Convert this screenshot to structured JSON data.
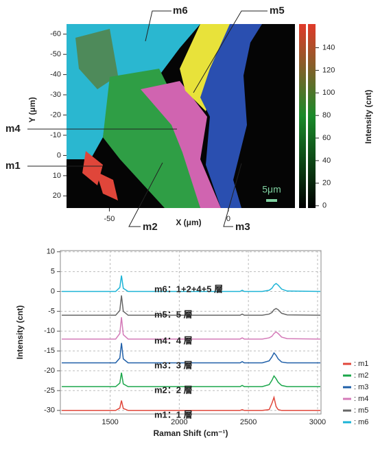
{
  "chart_data": [
    {
      "type": "image",
      "xlabel": "X (μm)",
      "ylabel": "Y (μm)",
      "xlim": [
        -68,
        28
      ],
      "ylim": [
        -65,
        26
      ],
      "xticks": [
        -50,
        0
      ],
      "yticks": [
        -60,
        -50,
        -40,
        -30,
        -20,
        -10,
        0,
        10,
        20
      ],
      "colorbar": {
        "label": "Intensity (cnt)",
        "lim": [
          -2,
          161
        ],
        "ticks": [
          0,
          20,
          40,
          60,
          80,
          100,
          120,
          140
        ]
      },
      "annotations": [
        "m6",
        "m5",
        "m4",
        "m1",
        "m2",
        "m3"
      ],
      "scale_bar": "5μm"
    },
    {
      "type": "line",
      "xlabel": "Raman Shift (cm⁻¹)",
      "ylabel": "Intensity (cnt)",
      "xlim": [
        1140,
        3025
      ],
      "ylim": [
        -30.9,
        10.3
      ],
      "xticks": [
        1500,
        2000,
        2500,
        3000
      ],
      "yticks": [
        10,
        5,
        0,
        -5,
        -10,
        -15,
        -20,
        -25,
        -30
      ],
      "grid": true,
      "x": [
        1150,
        1540,
        1570,
        1582,
        1595,
        1630,
        2440,
        2455,
        2470,
        2600,
        2650,
        2670,
        2685,
        2700,
        2715,
        2740,
        2780,
        3020
      ],
      "series": [
        {
          "name": ": m1",
          "color": "#e0463a",
          "values": [
            -30,
            -30,
            -29.4,
            -27.5,
            -29.5,
            -30,
            -30,
            -29.8,
            -30,
            -30,
            -29.8,
            -28.2,
            -26.7,
            -29,
            -29.8,
            -30,
            -30,
            -30
          ]
        },
        {
          "name": ": m2",
          "color": "#1aa64a",
          "values": [
            -24,
            -24,
            -23.1,
            -20.5,
            -23.3,
            -24,
            -24,
            -23.7,
            -24,
            -24,
            -23.5,
            -22.4,
            -21.3,
            -22,
            -22.9,
            -23.7,
            -24,
            -24
          ]
        },
        {
          "name": ": m3",
          "color": "#1f5fa8",
          "values": [
            -18,
            -18,
            -16.8,
            -13,
            -17,
            -18,
            -18,
            -17.7,
            -18,
            -18,
            -17.5,
            -16.5,
            -15.5,
            -16.1,
            -17,
            -17.8,
            -18,
            -18
          ]
        },
        {
          "name": ": m4",
          "color": "#d47ab8",
          "values": [
            -12,
            -12,
            -10.6,
            -6.5,
            -10.9,
            -12,
            -12,
            -11.7,
            -12,
            -12,
            -11.7,
            -11.3,
            -10.6,
            -10.2,
            -10.6,
            -11.5,
            -11.9,
            -12
          ]
        },
        {
          "name": ": m5",
          "color": "#666666",
          "values": [
            -6,
            -6,
            -4.8,
            -1,
            -5,
            -6,
            -6,
            -5.7,
            -6,
            -6,
            -5.7,
            -5.3,
            -4.6,
            -4.3,
            -4.6,
            -5.5,
            -5.9,
            -6
          ]
        },
        {
          "name": ": m6",
          "color": "#1bb3d6",
          "values": [
            0,
            0,
            1,
            4,
            0.8,
            0,
            0,
            0.3,
            0,
            0,
            0.3,
            0.8,
            1.6,
            2,
            1.6,
            0.6,
            0.1,
            0
          ]
        }
      ],
      "annotations": [
        "m6：1+2+4+5 層",
        "m5：5 層",
        "m4：4 層",
        "m3：3 層",
        "m2：2 層",
        "m1：1 層"
      ]
    }
  ]
}
